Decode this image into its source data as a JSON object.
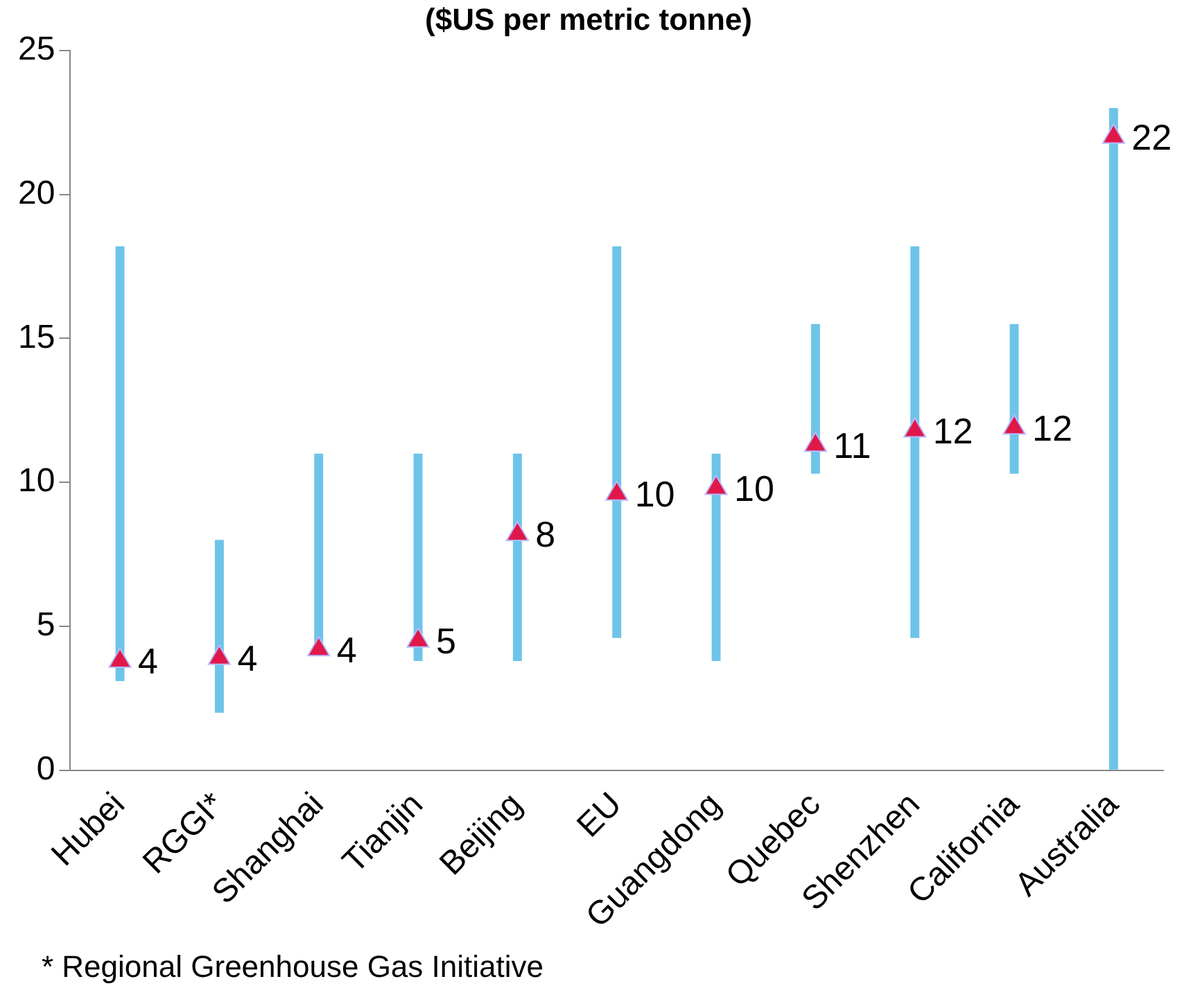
{
  "chart_data": {
    "type": "bar",
    "title": "($US per metric tonne)",
    "categories": [
      "Hubei",
      "RGGI*",
      "Shanghai",
      "Tianjin",
      "Beijing",
      "EU",
      "Guangdong",
      "Quebec",
      "Shenzhen",
      "California",
      "Australia"
    ],
    "series": [
      {
        "color": "#6ec3e8",
        "base": [
          3.1,
          2.0,
          4.0,
          3.8,
          3.8,
          4.6,
          3.8,
          10.3,
          4.6,
          10.3,
          0
        ],
        "values": [
          15.1,
          6.0,
          7.0,
          7.2,
          7.2,
          13.6,
          7.2,
          5.2,
          13.6,
          5.2,
          23.0
        ]
      },
      {
        "type": "scatter",
        "color": "#e0184a",
        "x": [
          "Hubei",
          "RGGI*",
          "Shanghai",
          "Tianjin",
          "Beijing",
          "EU",
          "Guangdong",
          "Quebec",
          "Shenzhen",
          "California",
          "Australia"
        ],
        "values": [
          3.8,
          3.9,
          4.2,
          4.5,
          8.2,
          9.6,
          9.8,
          11.3,
          11.8,
          11.9,
          22.0
        ],
        "value_labels": [
          "4",
          "4",
          "4",
          "5",
          "8",
          "10",
          "10",
          "11",
          "12",
          "12",
          "22"
        ]
      }
    ],
    "marker": "triangle",
    "ylim": [
      0,
      25
    ],
    "yticks": [
      0,
      5,
      10,
      15,
      20,
      25
    ],
    "grid": false,
    "legend": false,
    "annotations": [
      "* Regional Greenhouse Gas Initiative"
    ]
  }
}
